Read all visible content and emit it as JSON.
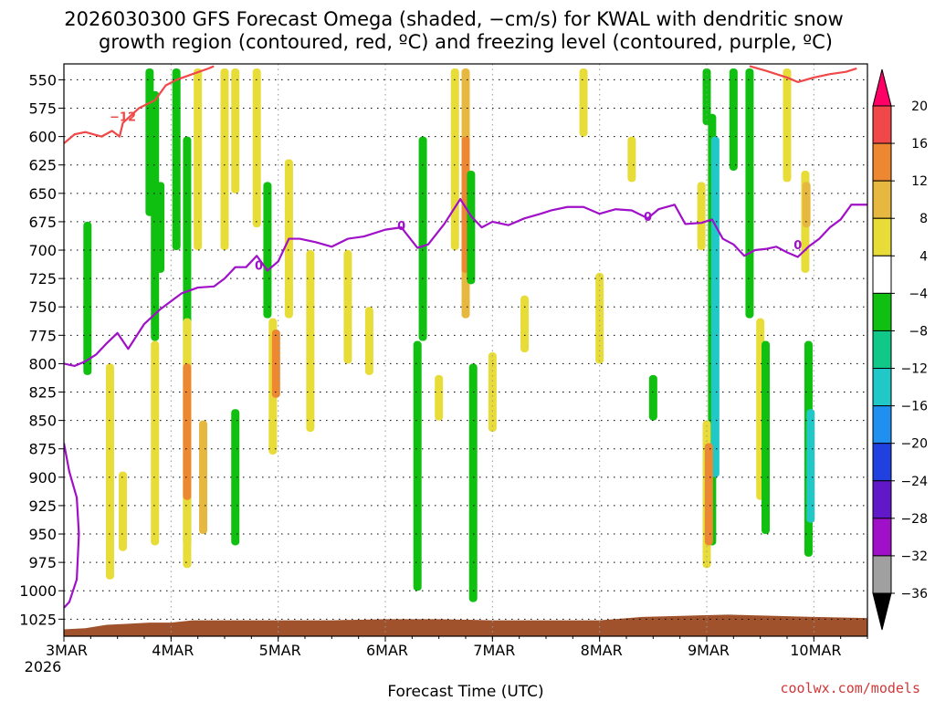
{
  "chart_data": {
    "type": "heatmap",
    "title_line1": "2026030300 GFS Forecast Omega (shaded, −cm/s) for KWAL with dendritic snow",
    "title_line2": "growth region (contoured, red, ºC) and freezing level (contoured, purple, ºC)",
    "xlabel": "Forecast Time (UTC)",
    "ylabel": "",
    "credit": "coolwx.com/models",
    "x_days": [
      3,
      4,
      5,
      6,
      7,
      8,
      9,
      10
    ],
    "x_range_days": [
      3,
      10.5
    ],
    "x_tick_labels": [
      "3MAR",
      "4MAR",
      "5MAR",
      "6MAR",
      "7MAR",
      "8MAR",
      "9MAR",
      "10MAR"
    ],
    "x_year_label": "2026",
    "y_ticks_hpa": [
      550,
      575,
      600,
      625,
      650,
      675,
      700,
      725,
      750,
      775,
      800,
      825,
      850,
      875,
      900,
      925,
      950,
      975,
      1000,
      1025
    ],
    "y_range_hpa": [
      536,
      1040
    ],
    "grid": "dotted",
    "colorbar": {
      "labels": [
        "20",
        "16",
        "12",
        "8",
        "4",
        "−4",
        "−8",
        "−12",
        "−16",
        "−20",
        "−24",
        "−28",
        "−32",
        "−36"
      ],
      "colors": [
        "#ff0066",
        "#f04848",
        "#ee8830",
        "#e6b840",
        "#e8dc38",
        "#ffffff",
        "#10c010",
        "#10c888",
        "#20c8c8",
        "#2090f0",
        "#2040e0",
        "#6018c8",
        "#a010c8",
        "#a0a0a0",
        "#000000"
      ]
    },
    "omega_blobs": [
      {
        "t": 3.22,
        "p0": 675,
        "p1": 810,
        "color": "#10c010"
      },
      {
        "t": 3.43,
        "p0": 800,
        "p1": 990,
        "color": "#e8dc38"
      },
      {
        "t": 3.55,
        "p0": 895,
        "p1": 965,
        "color": "#e8dc38"
      },
      {
        "t": 3.8,
        "p0": 540,
        "p1": 670,
        "color": "#10c010"
      },
      {
        "t": 3.85,
        "p0": 560,
        "p1": 780,
        "color": "#10c010"
      },
      {
        "t": 3.9,
        "p0": 640,
        "p1": 720,
        "color": "#10c010"
      },
      {
        "t": 3.85,
        "p0": 780,
        "p1": 960,
        "color": "#e8dc38"
      },
      {
        "t": 4.05,
        "p0": 540,
        "p1": 700,
        "color": "#10c010"
      },
      {
        "t": 4.15,
        "p0": 600,
        "p1": 960,
        "color": "#10c010"
      },
      {
        "t": 4.15,
        "p0": 760,
        "p1": 980,
        "color": "#e8dc38"
      },
      {
        "t": 4.15,
        "p0": 800,
        "p1": 920,
        "color": "#ee8830"
      },
      {
        "t": 4.25,
        "p0": 540,
        "p1": 700,
        "color": "#e8dc38"
      },
      {
        "t": 4.3,
        "p0": 850,
        "p1": 950,
        "color": "#e6b840"
      },
      {
        "t": 4.5,
        "p0": 540,
        "p1": 700,
        "color": "#e8dc38"
      },
      {
        "t": 4.6,
        "p0": 540,
        "p1": 650,
        "color": "#e8dc38"
      },
      {
        "t": 4.6,
        "p0": 840,
        "p1": 960,
        "color": "#10c010"
      },
      {
        "t": 4.8,
        "p0": 540,
        "p1": 680,
        "color": "#e8dc38"
      },
      {
        "t": 4.9,
        "p0": 640,
        "p1": 760,
        "color": "#10c010"
      },
      {
        "t": 4.95,
        "p0": 760,
        "p1": 880,
        "color": "#e8dc38"
      },
      {
        "t": 4.98,
        "p0": 770,
        "p1": 830,
        "color": "#ee8830"
      },
      {
        "t": 5.1,
        "p0": 620,
        "p1": 760,
        "color": "#e8dc38"
      },
      {
        "t": 5.3,
        "p0": 700,
        "p1": 860,
        "color": "#e8dc38"
      },
      {
        "t": 5.65,
        "p0": 700,
        "p1": 800,
        "color": "#e8dc38"
      },
      {
        "t": 5.85,
        "p0": 750,
        "p1": 810,
        "color": "#e8dc38"
      },
      {
        "t": 6.3,
        "p0": 780,
        "p1": 1000,
        "color": "#10c010"
      },
      {
        "t": 6.35,
        "p0": 600,
        "p1": 780,
        "color": "#10c010"
      },
      {
        "t": 6.5,
        "p0": 810,
        "p1": 850,
        "color": "#e8dc38"
      },
      {
        "t": 6.65,
        "p0": 540,
        "p1": 700,
        "color": "#e8dc38"
      },
      {
        "t": 6.75,
        "p0": 540,
        "p1": 760,
        "color": "#e6b840"
      },
      {
        "t": 6.75,
        "p0": 600,
        "p1": 720,
        "color": "#ee8830"
      },
      {
        "t": 6.8,
        "p0": 630,
        "p1": 730,
        "color": "#10c010"
      },
      {
        "t": 6.82,
        "p0": 800,
        "p1": 1010,
        "color": "#10c010"
      },
      {
        "t": 7.0,
        "p0": 790,
        "p1": 860,
        "color": "#e8dc38"
      },
      {
        "t": 7.3,
        "p0": 740,
        "p1": 790,
        "color": "#e8dc38"
      },
      {
        "t": 7.85,
        "p0": 540,
        "p1": 600,
        "color": "#e8dc38"
      },
      {
        "t": 8.0,
        "p0": 720,
        "p1": 800,
        "color": "#e8dc38"
      },
      {
        "t": 8.3,
        "p0": 600,
        "p1": 640,
        "color": "#e8dc38"
      },
      {
        "t": 8.5,
        "p0": 810,
        "p1": 850,
        "color": "#10c010"
      },
      {
        "t": 8.95,
        "p0": 640,
        "p1": 700,
        "color": "#e8dc38"
      },
      {
        "t": 9.0,
        "p0": 540,
        "p1": 590,
        "color": "#10c010"
      },
      {
        "t": 9.05,
        "p0": 580,
        "p1": 960,
        "color": "#10c010"
      },
      {
        "t": 9.08,
        "p0": 600,
        "p1": 900,
        "color": "#20c8c8"
      },
      {
        "t": 9.0,
        "p0": 850,
        "p1": 980,
        "color": "#e8dc38"
      },
      {
        "t": 9.02,
        "p0": 870,
        "p1": 960,
        "color": "#ee8830"
      },
      {
        "t": 9.25,
        "p0": 540,
        "p1": 630,
        "color": "#10c010"
      },
      {
        "t": 9.4,
        "p0": 540,
        "p1": 760,
        "color": "#10c010"
      },
      {
        "t": 9.5,
        "p0": 760,
        "p1": 920,
        "color": "#e8dc38"
      },
      {
        "t": 9.55,
        "p0": 780,
        "p1": 950,
        "color": "#10c010"
      },
      {
        "t": 9.75,
        "p0": 540,
        "p1": 640,
        "color": "#e8dc38"
      },
      {
        "t": 9.92,
        "p0": 630,
        "p1": 720,
        "color": "#e8dc38"
      },
      {
        "t": 9.93,
        "p0": 640,
        "p1": 680,
        "color": "#e6b840"
      },
      {
        "t": 9.95,
        "p0": 780,
        "p1": 970,
        "color": "#10c010"
      },
      {
        "t": 9.97,
        "p0": 840,
        "p1": 940,
        "color": "#20c8c8"
      }
    ],
    "dgz_contour": {
      "color": "#f04848",
      "label": "−12",
      "label_pos": [
        3.55,
        583
      ],
      "points": [
        [
          3.0,
          606
        ],
        [
          3.1,
          598
        ],
        [
          3.2,
          596
        ],
        [
          3.35,
          600
        ],
        [
          3.45,
          595
        ],
        [
          3.52,
          600
        ],
        [
          3.55,
          588
        ],
        [
          3.7,
          575
        ],
        [
          3.85,
          568
        ],
        [
          3.95,
          555
        ],
        [
          4.05,
          550
        ],
        [
          4.2,
          545
        ],
        [
          4.35,
          540
        ],
        [
          4.4,
          538
        ]
      ],
      "points2": [
        [
          9.4,
          538
        ],
        [
          9.55,
          542
        ],
        [
          9.75,
          548
        ],
        [
          9.85,
          552
        ],
        [
          10.0,
          548
        ],
        [
          10.15,
          545
        ],
        [
          10.3,
          543
        ],
        [
          10.4,
          540
        ]
      ]
    },
    "freezing_contour": {
      "color": "#a010c8",
      "labels": [
        {
          "text": "0",
          "pos": [
            4.82,
            714
          ]
        },
        {
          "text": "0",
          "pos": [
            6.15,
            679
          ]
        },
        {
          "text": "0",
          "pos": [
            8.45,
            671
          ]
        },
        {
          "text": "0",
          "pos": [
            9.85,
            696
          ]
        }
      ],
      "points": [
        [
          3.0,
          800
        ],
        [
          3.1,
          802
        ],
        [
          3.2,
          798
        ],
        [
          3.3,
          792
        ],
        [
          3.4,
          782
        ],
        [
          3.5,
          773
        ],
        [
          3.6,
          787
        ],
        [
          3.75,
          765
        ],
        [
          3.9,
          752
        ],
        [
          4.0,
          745
        ],
        [
          4.1,
          738
        ],
        [
          4.25,
          733
        ],
        [
          4.4,
          732
        ],
        [
          4.5,
          725
        ],
        [
          4.6,
          715
        ],
        [
          4.7,
          715
        ],
        [
          4.8,
          705
        ],
        [
          4.9,
          718
        ],
        [
          5.0,
          710
        ],
        [
          5.1,
          690
        ],
        [
          5.2,
          690
        ],
        [
          5.35,
          693
        ],
        [
          5.5,
          697
        ],
        [
          5.65,
          690
        ],
        [
          5.8,
          688
        ],
        [
          6.0,
          682
        ],
        [
          6.15,
          680
        ],
        [
          6.3,
          698
        ],
        [
          6.4,
          695
        ],
        [
          6.55,
          677
        ],
        [
          6.7,
          655
        ],
        [
          6.8,
          670
        ],
        [
          6.9,
          680
        ],
        [
          7.0,
          675
        ],
        [
          7.15,
          678
        ],
        [
          7.3,
          672
        ],
        [
          7.45,
          668
        ],
        [
          7.55,
          665
        ],
        [
          7.7,
          662
        ],
        [
          7.85,
          662
        ],
        [
          8.0,
          668
        ],
        [
          8.15,
          664
        ],
        [
          8.3,
          665
        ],
        [
          8.45,
          672
        ],
        [
          8.55,
          664
        ],
        [
          8.7,
          660
        ],
        [
          8.8,
          677
        ],
        [
          8.95,
          676
        ],
        [
          9.05,
          673
        ],
        [
          9.15,
          690
        ],
        [
          9.25,
          695
        ],
        [
          9.35,
          705
        ],
        [
          9.45,
          700
        ],
        [
          9.55,
          699
        ],
        [
          9.65,
          697
        ],
        [
          9.75,
          702
        ],
        [
          9.85,
          706
        ],
        [
          9.95,
          697
        ],
        [
          10.05,
          690
        ],
        [
          10.15,
          680
        ],
        [
          10.25,
          673
        ],
        [
          10.35,
          660
        ],
        [
          10.5,
          660
        ]
      ],
      "points2": [
        [
          3.0,
          870
        ],
        [
          3.05,
          895
        ],
        [
          3.12,
          918
        ],
        [
          3.14,
          950
        ],
        [
          3.12,
          990
        ],
        [
          3.05,
          1010
        ],
        [
          3.0,
          1015
        ]
      ]
    },
    "terrain": {
      "color": "#a0522d",
      "top_hpa": [
        [
          3.0,
          1034
        ],
        [
          3.2,
          1033
        ],
        [
          3.4,
          1030
        ],
        [
          3.6,
          1029
        ],
        [
          3.8,
          1028
        ],
        [
          4.0,
          1028
        ],
        [
          4.2,
          1026
        ],
        [
          4.6,
          1026
        ],
        [
          5.0,
          1026
        ],
        [
          5.5,
          1026
        ],
        [
          6.0,
          1025
        ],
        [
          6.5,
          1025
        ],
        [
          7.0,
          1026
        ],
        [
          7.5,
          1026
        ],
        [
          8.0,
          1026
        ],
        [
          8.4,
          1023
        ],
        [
          8.8,
          1022
        ],
        [
          9.2,
          1021
        ],
        [
          9.6,
          1022
        ],
        [
          10.0,
          1023
        ],
        [
          10.5,
          1024
        ]
      ]
    }
  }
}
